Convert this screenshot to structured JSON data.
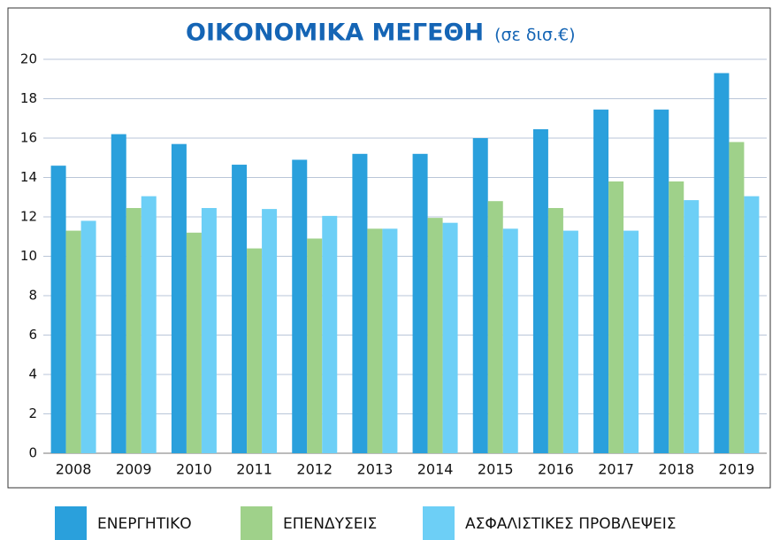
{
  "chart_data": {
    "type": "bar",
    "title": "ΟΙΚΟΝΟΜΙΚΑ ΜΕΓΕΘΗ",
    "subtitle": "(σε δισ.€)",
    "categories": [
      "2008",
      "2009",
      "2010",
      "2011",
      "2012",
      "2013",
      "2014",
      "2015",
      "2016",
      "2017",
      "2018",
      "2019"
    ],
    "series": [
      {
        "name": "ΕΝΕΡΓΗΤΙΚΟ",
        "color": "#2aa0dc",
        "values": [
          14.6,
          16.2,
          15.7,
          14.65,
          14.9,
          15.2,
          15.2,
          16.0,
          16.45,
          17.45,
          17.45,
          19.3
        ]
      },
      {
        "name": "ΕΠΕΝΔΥΣΕΙΣ",
        "color": "#9fd18a",
        "values": [
          11.3,
          12.45,
          11.2,
          10.4,
          10.9,
          11.4,
          11.95,
          12.8,
          12.45,
          13.8,
          13.8,
          15.8
        ]
      },
      {
        "name": "ΑΣΦΑΛΙΣΤΙΚΕΣ ΠΡΟΒΛΕΨΕΙΣ",
        "color": "#6dcff6",
        "values": [
          11.8,
          13.05,
          12.45,
          12.4,
          12.05,
          11.4,
          11.7,
          11.4,
          11.3,
          11.3,
          12.85,
          13.05
        ]
      }
    ],
    "ylim": [
      0,
      20
    ],
    "yticks": [
      0,
      2,
      4,
      6,
      8,
      10,
      12,
      14,
      16,
      18,
      20
    ],
    "grid": true
  }
}
